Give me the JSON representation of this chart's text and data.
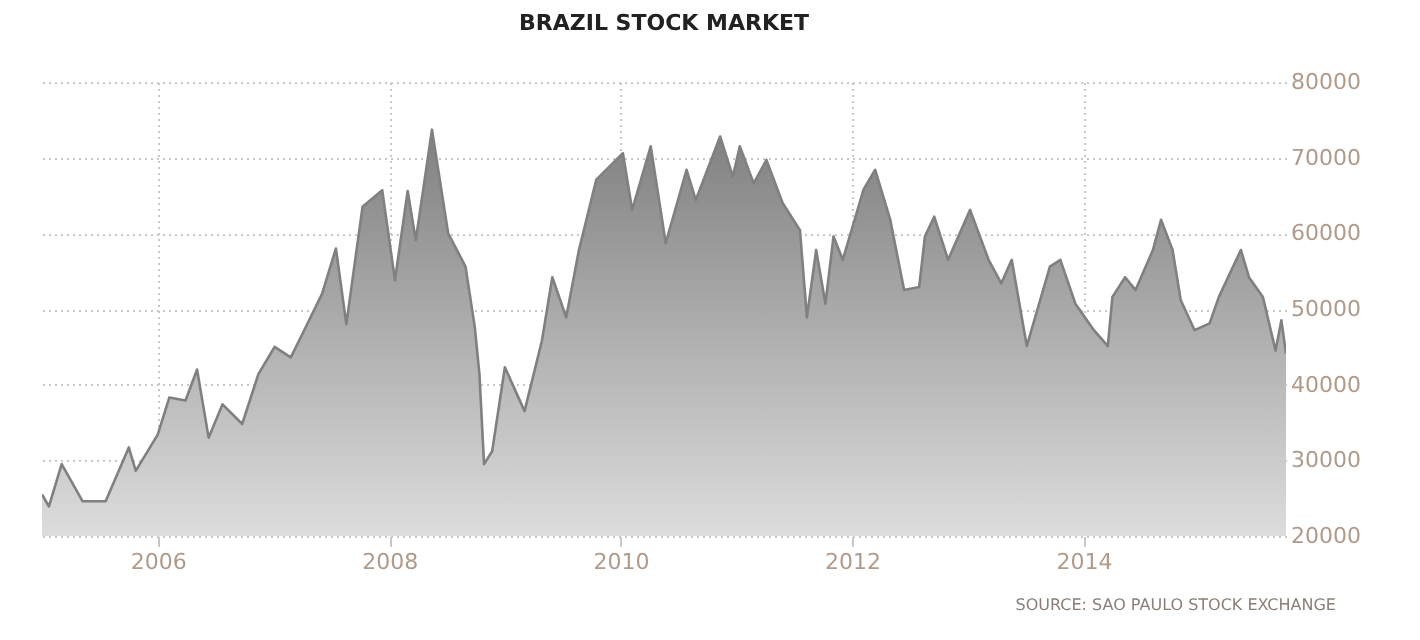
{
  "chart_data": {
    "type": "area",
    "title": "BRAZIL STOCK MARKET",
    "annotations": [
      "SOURCE: SAO PAULO STOCK EXCHANGE"
    ],
    "x": [
      2005.0,
      2005.06,
      2005.17,
      2005.35,
      2005.55,
      2005.75,
      2005.81,
      2006.0,
      2006.1,
      2006.24,
      2006.34,
      2006.44,
      2006.56,
      2006.73,
      2006.87,
      2007.01,
      2007.15,
      2007.25,
      2007.42,
      2007.54,
      2007.63,
      2007.77,
      2007.94,
      2008.05,
      2008.16,
      2008.23,
      2008.37,
      2008.51,
      2008.66,
      2008.74,
      2008.78,
      2008.82,
      2008.89,
      2009.0,
      2009.17,
      2009.32,
      2009.41,
      2009.53,
      2009.64,
      2009.79,
      2010.02,
      2010.1,
      2010.26,
      2010.39,
      2010.57,
      2010.65,
      2010.86,
      2010.97,
      2011.03,
      2011.15,
      2011.26,
      2011.4,
      2011.55,
      2011.61,
      2011.69,
      2011.77,
      2011.84,
      2011.92,
      2012.1,
      2012.2,
      2012.33,
      2012.45,
      2012.58,
      2012.63,
      2012.71,
      2012.83,
      2013.02,
      2013.18,
      2013.29,
      2013.38,
      2013.51,
      2013.71,
      2013.8,
      2013.93,
      2014.09,
      2014.21,
      2014.25,
      2014.36,
      2014.45,
      2014.6,
      2014.67,
      2014.77,
      2014.84,
      2014.96,
      2015.09,
      2015.17,
      2015.36,
      2015.43,
      2015.55,
      2015.66,
      2015.71,
      2015.75
    ],
    "series": [
      {
        "color": "#808080",
        "values": [
          25500,
          23900,
          29500,
          24600,
          24600,
          31700,
          28600,
          33400,
          38300,
          37900,
          42000,
          33000,
          37400,
          34800,
          41400,
          45000,
          43600,
          46700,
          52000,
          58000,
          48000,
          63500,
          65700,
          53800,
          65600,
          59100,
          73700,
          60000,
          55600,
          47600,
          41400,
          29500,
          31200,
          42300,
          36500,
          45800,
          54200,
          48900,
          57800,
          67100,
          70600,
          63100,
          71500,
          58700,
          68400,
          64400,
          72800,
          67500,
          71500,
          66600,
          69700,
          64000,
          60400,
          48900,
          57800,
          50700,
          59600,
          56500,
          65800,
          68400,
          61800,
          52500,
          52900,
          59600,
          62200,
          56500,
          63100,
          56500,
          53400,
          56500,
          45100,
          55600,
          56500,
          50700,
          47200,
          45100,
          51600,
          54200,
          52500,
          57800,
          61800,
          57800,
          51200,
          47200,
          48100,
          51600,
          57800,
          54200,
          51600,
          44500,
          48500,
          44100
        ]
      }
    ],
    "xlim": [
      2005,
      2015.75
    ],
    "xticks": [
      2006,
      2008,
      2010,
      2012,
      2014
    ],
    "ylim": [
      20000,
      80000
    ],
    "yticks": [
      20000,
      30000,
      40000,
      50000,
      60000,
      70000,
      80000
    ],
    "grid": true
  }
}
